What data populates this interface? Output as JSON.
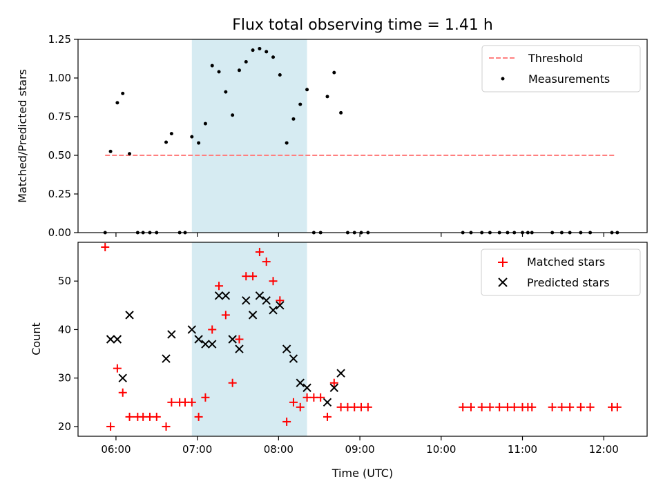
{
  "chart_data": [
    {
      "type": "scatter",
      "title": "Flux total observing time = 1.41 h",
      "ylabel": "Matched/Predicted stars",
      "xlabel": "",
      "xlim": [
        "05:32",
        "12:32"
      ],
      "ylim": [
        0,
        1.25
      ],
      "yticks": [
        "0.00",
        "0.25",
        "0.50",
        "0.75",
        "1.00",
        "1.25"
      ],
      "shaded_region": [
        "06:56",
        "08:21"
      ],
      "legend_position": "upper right",
      "series": [
        {
          "name": "Threshold",
          "style": "dashed-line",
          "color": "#ff7f7f",
          "x": [
            "05:52",
            "12:09"
          ],
          "y": [
            0.5,
            0.5
          ]
        },
        {
          "name": "Measurements",
          "style": "dot",
          "color": "#000000",
          "x": [
            "05:52",
            "05:56",
            "06:01",
            "06:05",
            "06:10",
            "06:16",
            "06:20",
            "06:25",
            "06:30",
            "06:37",
            "06:41",
            "06:47",
            "06:51",
            "06:56",
            "07:01",
            "07:06",
            "07:11",
            "07:16",
            "07:21",
            "07:26",
            "07:31",
            "07:36",
            "07:41",
            "07:46",
            "07:51",
            "07:56",
            "08:01",
            "08:06",
            "08:11",
            "08:16",
            "08:21",
            "08:26",
            "08:31",
            "08:36",
            "08:41",
            "08:46",
            "08:51",
            "08:56",
            "09:01",
            "09:06",
            "10:16",
            "10:22",
            "10:30",
            "10:36",
            "10:43",
            "10:49",
            "10:54",
            "11:00",
            "11:04",
            "11:07",
            "11:22",
            "11:29",
            "11:35",
            "11:43",
            "11:50",
            "12:06",
            "12:10"
          ],
          "y": [
            0.0,
            0.525,
            0.84,
            0.9,
            0.51,
            0.0,
            0.0,
            0.0,
            0.0,
            0.585,
            0.64,
            0.0,
            0.0,
            0.62,
            0.58,
            0.705,
            1.08,
            1.04,
            0.91,
            0.76,
            1.05,
            1.105,
            1.18,
            1.19,
            1.17,
            1.135,
            1.02,
            0.58,
            0.735,
            0.83,
            0.925,
            0.0,
            0.0,
            0.88,
            1.035,
            0.775,
            0.0,
            0.0,
            0.0,
            0.0,
            0.0,
            0.0,
            0.0,
            0.0,
            0.0,
            0.0,
            0.0,
            0.0,
            0.0,
            0.0,
            0.0,
            0.0,
            0.0,
            0.0,
            0.0,
            0.0,
            0.0
          ]
        }
      ]
    },
    {
      "type": "scatter",
      "title": "",
      "ylabel": "Count",
      "xlabel": "Time (UTC)",
      "xlim": [
        "05:32",
        "12:32"
      ],
      "ylim": [
        18,
        58
      ],
      "yticks": [
        "20",
        "30",
        "40",
        "50"
      ],
      "xticks": [
        "06:00",
        "07:00",
        "08:00",
        "09:00",
        "10:00",
        "11:00",
        "12:00"
      ],
      "shaded_region": [
        "06:56",
        "08:21"
      ],
      "legend_position": "upper right",
      "series": [
        {
          "name": "Matched stars",
          "style": "plus",
          "color": "#ff0000",
          "x": [
            "05:52",
            "05:56",
            "06:01",
            "06:05",
            "06:10",
            "06:16",
            "06:20",
            "06:25",
            "06:30",
            "06:37",
            "06:41",
            "06:47",
            "06:51",
            "06:56",
            "07:01",
            "07:06",
            "07:11",
            "07:16",
            "07:21",
            "07:26",
            "07:31",
            "07:36",
            "07:41",
            "07:46",
            "07:51",
            "07:56",
            "08:01",
            "08:06",
            "08:11",
            "08:16",
            "08:21",
            "08:26",
            "08:31",
            "08:36",
            "08:41",
            "08:46",
            "08:51",
            "08:56",
            "09:01",
            "09:06",
            "10:16",
            "10:22",
            "10:30",
            "10:36",
            "10:43",
            "10:49",
            "10:54",
            "11:00",
            "11:04",
            "11:07",
            "11:22",
            "11:29",
            "11:35",
            "11:43",
            "11:50",
            "12:06",
            "12:10"
          ],
          "y": [
            57,
            20,
            32,
            27,
            22,
            22,
            22,
            22,
            22,
            20,
            25,
            25,
            25,
            25,
            22,
            26,
            40,
            49,
            43,
            29,
            38,
            51,
            51,
            56,
            54,
            50,
            46,
            21,
            25,
            24,
            26,
            26,
            26,
            22,
            29,
            24,
            24,
            24,
            24,
            24,
            24,
            24,
            24,
            24,
            24,
            24,
            24,
            24,
            24,
            24,
            24,
            24,
            24,
            24,
            24,
            24,
            24
          ]
        },
        {
          "name": "Predicted stars",
          "style": "x",
          "color": "#000000",
          "x": [
            "05:56",
            "06:01",
            "06:05",
            "06:10",
            "06:37",
            "06:41",
            "06:56",
            "07:01",
            "07:06",
            "07:11",
            "07:16",
            "07:21",
            "07:26",
            "07:31",
            "07:36",
            "07:41",
            "07:46",
            "07:51",
            "07:56",
            "08:01",
            "08:06",
            "08:11",
            "08:16",
            "08:21",
            "08:36",
            "08:41",
            "08:46"
          ],
          "y": [
            38,
            38,
            30,
            43,
            34,
            39,
            40,
            38,
            37,
            37,
            47,
            47,
            38,
            36,
            46,
            43,
            47,
            46,
            44,
            45,
            36,
            34,
            29,
            28,
            25,
            28,
            31
          ]
        }
      ]
    }
  ]
}
